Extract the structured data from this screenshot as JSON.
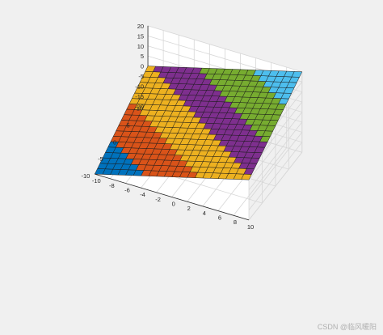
{
  "chart_data": {
    "type": "surface",
    "function": "z = x + y",
    "x": [
      -10,
      -9,
      -8,
      -7,
      -6,
      -5,
      -4,
      -3,
      -2,
      -1,
      0,
      1,
      2,
      3,
      4,
      5,
      6,
      7,
      8,
      9,
      10
    ],
    "y": [
      -10,
      -9,
      -8,
      -7,
      -6,
      -5,
      -4,
      -3,
      -2,
      -1,
      0,
      1,
      2,
      3,
      4,
      5,
      6,
      7,
      8,
      9,
      10
    ],
    "xlim": [
      -10,
      10
    ],
    "ylim": [
      -10,
      10
    ],
    "zlim": [
      -20,
      20
    ],
    "x_ticks": [
      -10,
      -8,
      -6,
      -4,
      -2,
      0,
      2,
      4,
      6,
      8,
      10
    ],
    "y_ticks": [
      -10,
      -5,
      0,
      5,
      10
    ],
    "z_ticks": [
      -20,
      -15,
      -10,
      -5,
      0,
      5,
      10,
      15,
      20
    ],
    "color_bands": [
      {
        "z_range": [
          -20,
          -13.3
        ],
        "color": "#0072BD"
      },
      {
        "z_range": [
          -13.3,
          -6.7
        ],
        "color": "#D95319"
      },
      {
        "z_range": [
          -6.7,
          0
        ],
        "color": "#EDB120"
      },
      {
        "z_range": [
          0,
          6.7
        ],
        "color": "#7E2F8E"
      },
      {
        "z_range": [
          6.7,
          13.3
        ],
        "color": "#77AC30"
      },
      {
        "z_range": [
          13.3,
          20
        ],
        "color": "#4DBEEE"
      }
    ],
    "grid": true,
    "title": "",
    "xlabel": "",
    "ylabel": "",
    "zlabel": ""
  },
  "watermark": "CSDN @临风暖阳"
}
